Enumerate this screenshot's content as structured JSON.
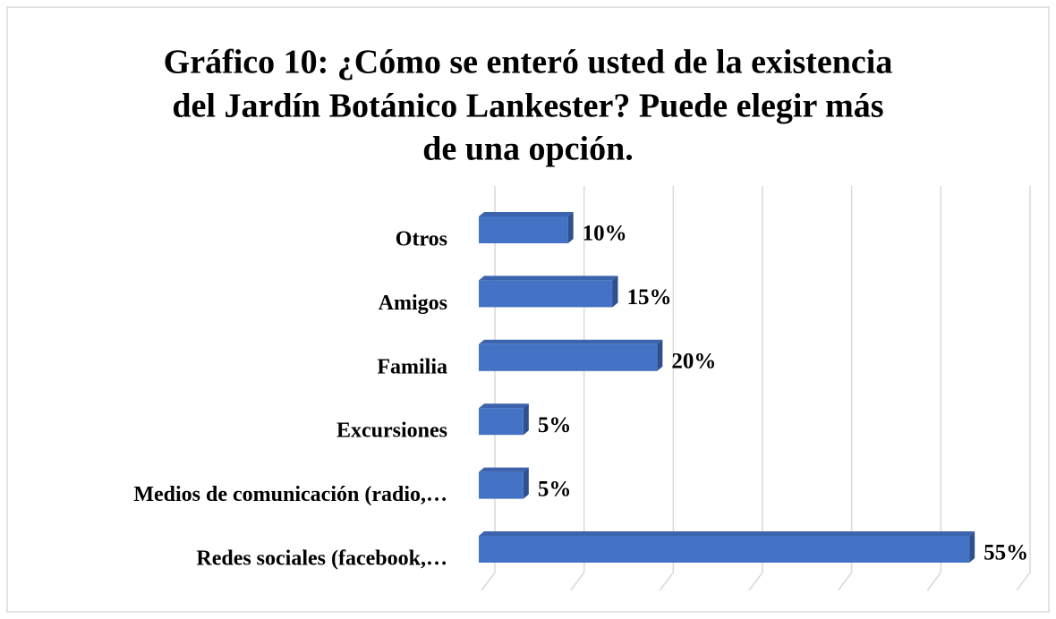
{
  "chart_data": {
    "type": "bar3d",
    "title": [
      "Gráfico 10:  ¿Cómo se enteró usted de la existencia",
      "del Jardín Botánico Lankester? Puede elegir más",
      "de una opción."
    ],
    "categories": [
      "Otros",
      "Amigos",
      "Familia",
      "Excursiones",
      "Medios de comunicación (radio,…",
      "Redes sociales (facebook,…"
    ],
    "values": [
      10,
      15,
      20,
      5,
      5,
      55
    ],
    "value_labels": [
      "10%",
      "15%",
      "20%",
      "5%",
      "5%",
      "55%"
    ],
    "color": "#4472c4",
    "xlim": [
      0,
      60
    ],
    "xticks": [
      0,
      10,
      20,
      30,
      40,
      50,
      60
    ],
    "grid": true
  }
}
